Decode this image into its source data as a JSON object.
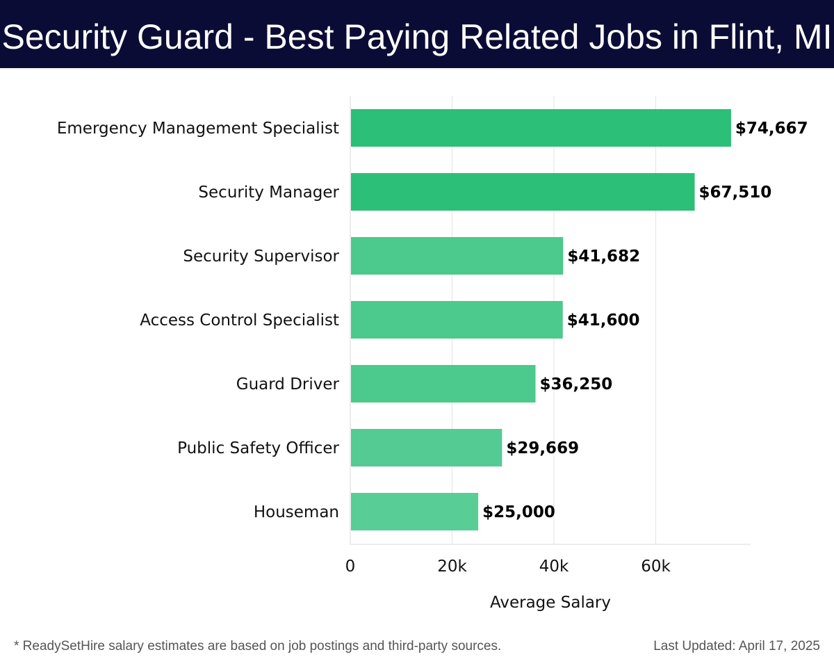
{
  "header": {
    "title": "Security Guard - Best Paying Related Jobs in Flint, MI",
    "background_color": "#0b0c36"
  },
  "footer": {
    "footnote": "* ReadySetHire salary estimates are based on job postings and third-party sources.",
    "last_updated": "Last Updated: April 17, 2025"
  },
  "chart_data": {
    "type": "bar",
    "orientation": "horizontal",
    "title": "Security Guard - Best Paying Related Jobs in Flint, MI",
    "xlabel": "Average Salary",
    "ylabel": "",
    "categories": [
      "Emergency Management Specialist",
      "Security Manager",
      "Security Supervisor",
      "Access Control Specialist",
      "Guard Driver",
      "Public Safety Officer",
      "Houseman"
    ],
    "values": [
      74667,
      67510,
      41682,
      41600,
      36250,
      29669,
      25000
    ],
    "value_labels": [
      "$74,667",
      "$67,510",
      "$41,682",
      "$41,600",
      "$36,250",
      "$29,669",
      "$25,000"
    ],
    "bar_colors": [
      "#2bbf78",
      "#2bbf78",
      "#4cc98d",
      "#4cc98d",
      "#4cc98d",
      "#53cb92",
      "#58cd96"
    ],
    "xticks": [
      0,
      20000,
      40000,
      60000
    ],
    "xtick_labels": [
      "0",
      "20k",
      "40k",
      "60k"
    ],
    "xlim": [
      0,
      78700
    ],
    "grid": "vertical",
    "legend": "none"
  }
}
